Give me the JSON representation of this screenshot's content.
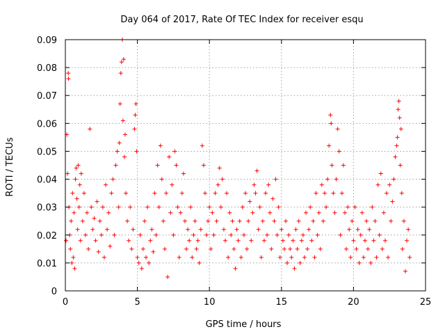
{
  "chart_data": {
    "type": "scatter",
    "title": "Day 064 of 2017, Rate Of TEC Index for receiver esqu",
    "xlabel": "GPS time / hours",
    "ylabel": "ROTI / TECUs",
    "xlim": [
      0,
      25
    ],
    "ylim": [
      0,
      0.09
    ],
    "xticks": [
      0,
      5,
      10,
      15,
      20,
      25
    ],
    "yticks": [
      0,
      0.01,
      0.02,
      0.03,
      0.04,
      0.05,
      0.06,
      0.07,
      0.08,
      0.09
    ],
    "xtick_labels": [
      "0",
      "5",
      "10",
      "15",
      "20",
      "25"
    ],
    "ytick_labels": [
      "0",
      "0.01",
      "0.02",
      "0.03",
      "0.04",
      "0.05",
      "0.06",
      "0.07",
      "0.08",
      "0.09"
    ],
    "grid": true,
    "marker": "+",
    "color": "#ff0000",
    "series": [
      {
        "name": "ROTI",
        "points": [
          [
            0.05,
            0.018
          ],
          [
            0.1,
            0.056
          ],
          [
            0.15,
            0.042
          ],
          [
            0.2,
            0.078
          ],
          [
            0.22,
            0.076
          ],
          [
            0.25,
            0.03
          ],
          [
            0.3,
            0.02
          ],
          [
            0.35,
            0.015
          ],
          [
            0.4,
            0.025
          ],
          [
            0.45,
            0.01
          ],
          [
            0.5,
            0.035
          ],
          [
            0.55,
            0.012
          ],
          [
            0.6,
            0.028
          ],
          [
            0.65,
            0.008
          ],
          [
            0.7,
            0.04
          ],
          [
            0.75,
            0.044
          ],
          [
            0.8,
            0.033
          ],
          [
            0.85,
            0.022
          ],
          [
            0.9,
            0.045
          ],
          [
            0.95,
            0.03
          ],
          [
            1.0,
            0.038
          ],
          [
            1.05,
            0.018
          ],
          [
            1.1,
            0.042
          ],
          [
            1.2,
            0.025
          ],
          [
            1.3,
            0.035
          ],
          [
            1.4,
            0.02
          ],
          [
            1.5,
            0.028
          ],
          [
            1.6,
            0.015
          ],
          [
            1.7,
            0.058
          ],
          [
            1.8,
            0.03
          ],
          [
            1.9,
            0.022
          ],
          [
            2.0,
            0.026
          ],
          [
            2.1,
            0.018
          ],
          [
            2.2,
            0.032
          ],
          [
            2.3,
            0.014
          ],
          [
            2.4,
            0.025
          ],
          [
            2.5,
            0.02
          ],
          [
            2.6,
            0.03
          ],
          [
            2.7,
            0.012
          ],
          [
            2.8,
            0.038
          ],
          [
            2.9,
            0.022
          ],
          [
            3.0,
            0.028
          ],
          [
            3.1,
            0.016
          ],
          [
            3.2,
            0.035
          ],
          [
            3.3,
            0.04
          ],
          [
            3.4,
            0.02
          ],
          [
            3.5,
            0.045
          ],
          [
            3.6,
            0.05
          ],
          [
            3.7,
            0.03
          ],
          [
            3.75,
            0.053
          ],
          [
            3.8,
            0.067
          ],
          [
            3.85,
            0.078
          ],
          [
            3.9,
            0.082
          ],
          [
            3.95,
            0.09
          ],
          [
            4.0,
            0.061
          ],
          [
            4.05,
            0.083
          ],
          [
            4.1,
            0.048
          ],
          [
            4.15,
            0.056
          ],
          [
            4.2,
            0.035
          ],
          [
            4.3,
            0.025
          ],
          [
            4.4,
            0.018
          ],
          [
            4.5,
            0.03
          ],
          [
            4.6,
            0.015
          ],
          [
            4.7,
            0.022
          ],
          [
            4.8,
            0.058
          ],
          [
            4.85,
            0.063
          ],
          [
            4.9,
            0.067
          ],
          [
            4.95,
            0.05
          ],
          [
            5.0,
            0.012
          ],
          [
            5.1,
            0.01
          ],
          [
            5.2,
            0.02
          ],
          [
            5.3,
            0.008
          ],
          [
            5.4,
            0.015
          ],
          [
            5.5,
            0.025
          ],
          [
            5.6,
            0.012
          ],
          [
            5.7,
            0.03
          ],
          [
            5.8,
            0.01
          ],
          [
            5.9,
            0.018
          ],
          [
            6.0,
            0.022
          ],
          [
            6.1,
            0.014
          ],
          [
            6.2,
            0.035
          ],
          [
            6.3,
            0.02
          ],
          [
            6.4,
            0.045
          ],
          [
            6.5,
            0.03
          ],
          [
            6.6,
            0.052
          ],
          [
            6.7,
            0.04
          ],
          [
            6.8,
            0.025
          ],
          [
            6.9,
            0.015
          ],
          [
            7.0,
            0.035
          ],
          [
            7.1,
            0.005
          ],
          [
            7.2,
            0.048
          ],
          [
            7.3,
            0.028
          ],
          [
            7.4,
            0.038
          ],
          [
            7.5,
            0.02
          ],
          [
            7.6,
            0.05
          ],
          [
            7.7,
            0.045
          ],
          [
            7.8,
            0.03
          ],
          [
            7.9,
            0.012
          ],
          [
            8.0,
            0.028
          ],
          [
            8.1,
            0.035
          ],
          [
            8.2,
            0.042
          ],
          [
            8.3,
            0.025
          ],
          [
            8.4,
            0.015
          ],
          [
            8.5,
            0.022
          ],
          [
            8.6,
            0.018
          ],
          [
            8.7,
            0.03
          ],
          [
            8.8,
            0.012
          ],
          [
            8.9,
            0.02
          ],
          [
            9.0,
            0.025
          ],
          [
            9.1,
            0.015
          ],
          [
            9.2,
            0.018
          ],
          [
            9.3,
            0.01
          ],
          [
            9.4,
            0.022
          ],
          [
            9.5,
            0.052
          ],
          [
            9.6,
            0.045
          ],
          [
            9.7,
            0.035
          ],
          [
            9.8,
            0.02
          ],
          [
            9.9,
            0.025
          ],
          [
            10.0,
            0.03
          ],
          [
            10.1,
            0.015
          ],
          [
            10.2,
            0.028
          ],
          [
            10.3,
            0.02
          ],
          [
            10.4,
            0.035
          ],
          [
            10.5,
            0.025
          ],
          [
            10.6,
            0.038
          ],
          [
            10.7,
            0.044
          ],
          [
            10.8,
            0.03
          ],
          [
            10.9,
            0.04
          ],
          [
            11.0,
            0.022
          ],
          [
            11.1,
            0.018
          ],
          [
            11.2,
            0.035
          ],
          [
            11.3,
            0.012
          ],
          [
            11.4,
            0.028
          ],
          [
            11.5,
            0.02
          ],
          [
            11.6,
            0.025
          ],
          [
            11.7,
            0.015
          ],
          [
            11.8,
            0.008
          ],
          [
            11.9,
            0.022
          ],
          [
            12.0,
            0.018
          ],
          [
            12.1,
            0.025
          ],
          [
            12.2,
            0.012
          ],
          [
            12.3,
            0.03
          ],
          [
            12.4,
            0.02
          ],
          [
            12.5,
            0.035
          ],
          [
            12.6,
            0.015
          ],
          [
            12.7,
            0.025
          ],
          [
            12.8,
            0.032
          ],
          [
            12.9,
            0.018
          ],
          [
            13.0,
            0.028
          ],
          [
            13.1,
            0.038
          ],
          [
            13.2,
            0.035
          ],
          [
            13.3,
            0.043
          ],
          [
            13.4,
            0.022
          ],
          [
            13.5,
            0.03
          ],
          [
            13.6,
            0.012
          ],
          [
            13.7,
            0.025
          ],
          [
            13.8,
            0.018
          ],
          [
            13.9,
            0.035
          ],
          [
            14.0,
            0.02
          ],
          [
            14.1,
            0.038
          ],
          [
            14.2,
            0.028
          ],
          [
            14.3,
            0.015
          ],
          [
            14.4,
            0.033
          ],
          [
            14.5,
            0.025
          ],
          [
            14.6,
            0.04
          ],
          [
            14.7,
            0.02
          ],
          [
            14.8,
            0.03
          ],
          [
            14.9,
            0.012
          ],
          [
            15.0,
            0.022
          ],
          [
            15.1,
            0.018
          ],
          [
            15.2,
            0.015
          ],
          [
            15.3,
            0.025
          ],
          [
            15.4,
            0.01
          ],
          [
            15.5,
            0.02
          ],
          [
            15.6,
            0.015
          ],
          [
            15.7,
            0.012
          ],
          [
            15.8,
            0.018
          ],
          [
            15.9,
            0.008
          ],
          [
            16.0,
            0.022
          ],
          [
            16.1,
            0.015
          ],
          [
            16.2,
            0.025
          ],
          [
            16.3,
            0.01
          ],
          [
            16.4,
            0.018
          ],
          [
            16.5,
            0.02
          ],
          [
            16.6,
            0.012
          ],
          [
            16.7,
            0.028
          ],
          [
            16.8,
            0.015
          ],
          [
            16.9,
            0.022
          ],
          [
            17.0,
            0.03
          ],
          [
            17.1,
            0.018
          ],
          [
            17.2,
            0.025
          ],
          [
            17.3,
            0.012
          ],
          [
            17.4,
            0.035
          ],
          [
            17.5,
            0.02
          ],
          [
            17.6,
            0.028
          ],
          [
            17.7,
            0.015
          ],
          [
            17.8,
            0.038
          ],
          [
            17.9,
            0.025
          ],
          [
            18.0,
            0.035
          ],
          [
            18.1,
            0.03
          ],
          [
            18.2,
            0.04
          ],
          [
            18.3,
            0.052
          ],
          [
            18.4,
            0.063
          ],
          [
            18.45,
            0.06
          ],
          [
            18.5,
            0.045
          ],
          [
            18.6,
            0.035
          ],
          [
            18.7,
            0.028
          ],
          [
            18.8,
            0.04
          ],
          [
            18.9,
            0.058
          ],
          [
            19.0,
            0.05
          ],
          [
            19.1,
            0.02
          ],
          [
            19.2,
            0.035
          ],
          [
            19.3,
            0.045
          ],
          [
            19.4,
            0.028
          ],
          [
            19.5,
            0.015
          ],
          [
            19.6,
            0.03
          ],
          [
            19.7,
            0.022
          ],
          [
            19.8,
            0.012
          ],
          [
            19.9,
            0.025
          ],
          [
            20.0,
            0.018
          ],
          [
            20.1,
            0.03
          ],
          [
            20.2,
            0.015
          ],
          [
            20.3,
            0.022
          ],
          [
            20.4,
            0.01
          ],
          [
            20.5,
            0.02
          ],
          [
            20.6,
            0.028
          ],
          [
            20.7,
            0.012
          ],
          [
            20.8,
            0.018
          ],
          [
            20.9,
            0.025
          ],
          [
            21.0,
            0.015
          ],
          [
            21.1,
            0.022
          ],
          [
            21.2,
            0.01
          ],
          [
            21.3,
            0.03
          ],
          [
            21.4,
            0.018
          ],
          [
            21.5,
            0.025
          ],
          [
            21.6,
            0.012
          ],
          [
            21.7,
            0.038
          ],
          [
            21.8,
            0.02
          ],
          [
            21.9,
            0.042
          ],
          [
            22.0,
            0.015
          ],
          [
            22.1,
            0.028
          ],
          [
            22.2,
            0.018
          ],
          [
            22.3,
            0.035
          ],
          [
            22.4,
            0.012
          ],
          [
            22.5,
            0.038
          ],
          [
            22.6,
            0.025
          ],
          [
            22.7,
            0.032
          ],
          [
            22.8,
            0.04
          ],
          [
            22.9,
            0.048
          ],
          [
            23.0,
            0.052
          ],
          [
            23.05,
            0.055
          ],
          [
            23.1,
            0.065
          ],
          [
            23.15,
            0.068
          ],
          [
            23.2,
            0.062
          ],
          [
            23.25,
            0.045
          ],
          [
            23.3,
            0.058
          ],
          [
            23.35,
            0.035
          ],
          [
            23.4,
            0.015
          ],
          [
            23.5,
            0.025
          ],
          [
            23.6,
            0.007
          ],
          [
            23.7,
            0.018
          ],
          [
            23.8,
            0.022
          ],
          [
            23.9,
            0.012
          ]
        ]
      }
    ]
  }
}
